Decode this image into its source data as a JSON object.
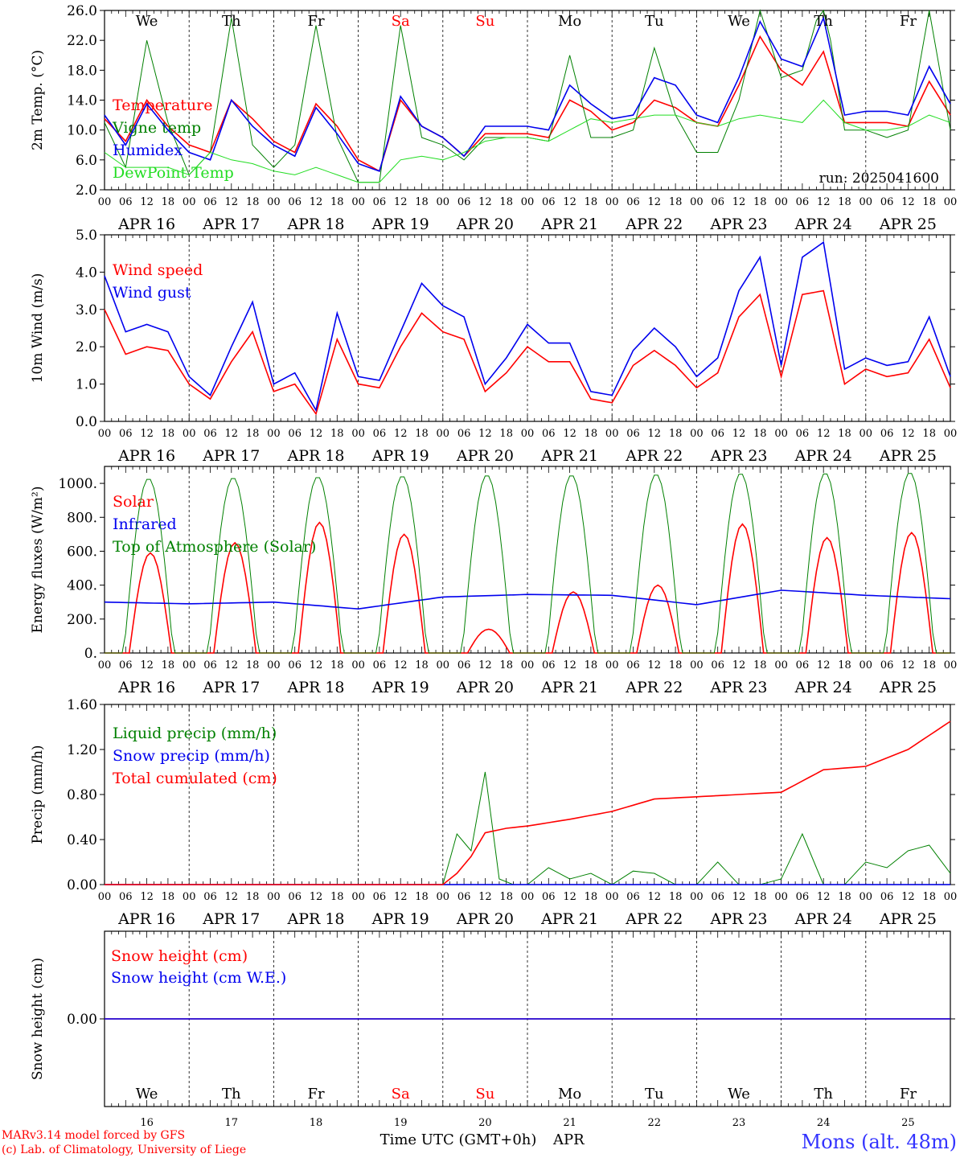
{
  "location": "Mons (alt. 48m)",
  "credits": [
    "MARv3.14 model forced by GFS",
    "(c) Lab. of Climatology, University of Liege"
  ],
  "xlabel": "Time UTC (GMT+0h)",
  "month": "APR",
  "run_label": "run: 2025041600",
  "days": [
    {
      "abbr": "We",
      "date": "16",
      "label": "APR 16",
      "weekend": false
    },
    {
      "abbr": "Th",
      "date": "17",
      "label": "APR 17",
      "weekend": false
    },
    {
      "abbr": "Fr",
      "date": "18",
      "label": "APR 18",
      "weekend": false
    },
    {
      "abbr": "Sa",
      "date": "19",
      "label": "APR 19",
      "weekend": true
    },
    {
      "abbr": "Su",
      "date": "20",
      "label": "APR 20",
      "weekend": true
    },
    {
      "abbr": "Mo",
      "date": "21",
      "label": "APR 21",
      "weekend": false
    },
    {
      "abbr": "Tu",
      "date": "22",
      "label": "APR 22",
      "weekend": false
    },
    {
      "abbr": "We",
      "date": "23",
      "label": "APR 23",
      "weekend": false
    },
    {
      "abbr": "Th",
      "date": "24",
      "label": "APR 24",
      "weekend": false
    },
    {
      "abbr": "Fr",
      "date": "25",
      "label": "APR 25",
      "weekend": false
    }
  ],
  "hour_ticks": [
    "00",
    "06",
    "12",
    "18"
  ],
  "end_tick": "00",
  "colors": {
    "red": "#ff0000",
    "blue": "#0000ee",
    "green": "#008000",
    "lightgreen": "#22dd22",
    "weekend": "#ff0000",
    "credit": "#ff0000",
    "location": "#3333ff"
  },
  "chart_data": [
    {
      "type": "line",
      "ylabel": "2m Temp. (°C)",
      "ylim": [
        2,
        26
      ],
      "yticks": [
        "2.0",
        "6.0",
        "10.0",
        "14.0",
        "18.0",
        "22.0",
        "26.0"
      ],
      "x_unit": "hours since APR 16 00 UTC",
      "series": [
        {
          "name": "Temperature",
          "color": "red",
          "x": [
            0,
            6,
            12,
            18,
            24,
            30,
            36,
            42,
            48,
            54,
            60,
            66,
            72,
            78,
            84,
            90,
            96,
            102,
            108,
            114,
            120,
            126,
            132,
            138,
            144,
            150,
            156,
            162,
            168,
            174,
            180,
            186,
            192,
            198,
            204,
            210,
            216,
            222,
            228,
            234,
            240
          ],
          "y": [
            11.5,
            8.5,
            14,
            10.5,
            8,
            7,
            14,
            11.5,
            8.5,
            7,
            13.5,
            10.5,
            6,
            4.5,
            14,
            10.5,
            9,
            6.5,
            9.5,
            9.5,
            9.5,
            9,
            14,
            12.5,
            10,
            11,
            14,
            13,
            11,
            10.5,
            16,
            22.5,
            18,
            16,
            20.5,
            11,
            11,
            11,
            10.5,
            16.5,
            12
          ]
        },
        {
          "name": "Vigne temp",
          "color": "green",
          "x": [
            0,
            6,
            12,
            18,
            24,
            30,
            36,
            42,
            48,
            54,
            60,
            66,
            72,
            78,
            84,
            90,
            96,
            102,
            108,
            114,
            120,
            126,
            132,
            138,
            144,
            150,
            156,
            162,
            168,
            174,
            180,
            186,
            192,
            198,
            204,
            210,
            216,
            222,
            228,
            234,
            240
          ],
          "y": [
            11,
            5,
            22,
            11,
            4,
            7,
            25,
            8,
            5,
            8,
            24,
            9,
            3,
            3,
            24,
            9,
            8,
            6,
            9,
            9,
            9,
            8.5,
            20,
            9,
            9,
            10,
            21,
            12,
            7,
            7,
            14,
            26,
            17,
            18,
            28,
            10,
            10,
            9,
            10,
            26,
            10
          ]
        },
        {
          "name": "Humidex",
          "color": "blue",
          "x": [
            0,
            6,
            12,
            18,
            24,
            30,
            36,
            42,
            48,
            54,
            60,
            66,
            72,
            78,
            84,
            90,
            96,
            102,
            108,
            114,
            120,
            126,
            132,
            138,
            144,
            150,
            156,
            162,
            168,
            174,
            180,
            186,
            192,
            198,
            204,
            210,
            216,
            222,
            228,
            234,
            240
          ],
          "y": [
            12,
            8,
            13.5,
            10,
            7,
            6,
            14,
            10.5,
            8,
            6.5,
            13,
            9.5,
            5.5,
            4.5,
            14.5,
            10.5,
            9,
            6.5,
            10.5,
            10.5,
            10.5,
            10,
            16,
            13.5,
            11.5,
            12,
            17,
            16,
            12,
            11,
            17,
            24.5,
            19.5,
            18.5,
            25,
            12,
            12.5,
            12.5,
            12,
            18.5,
            13.5
          ]
        },
        {
          "name": "DewPoint Temp",
          "color": "lightgreen",
          "x": [
            0,
            6,
            12,
            18,
            24,
            30,
            36,
            42,
            48,
            54,
            60,
            66,
            72,
            78,
            84,
            90,
            96,
            102,
            108,
            114,
            120,
            126,
            132,
            138,
            144,
            150,
            156,
            162,
            168,
            174,
            180,
            186,
            192,
            198,
            204,
            210,
            216,
            222,
            228,
            234,
            240
          ],
          "y": [
            7,
            5,
            5,
            5,
            4,
            7,
            6,
            5.5,
            4.5,
            4,
            5,
            4,
            3,
            3,
            6,
            6.5,
            6,
            7,
            8.5,
            9,
            9,
            8.5,
            10,
            11.5,
            11,
            11.5,
            12,
            12,
            11,
            10.5,
            11.5,
            12,
            11.5,
            11,
            14,
            11,
            10,
            10,
            10.5,
            12,
            11
          ]
        }
      ]
    },
    {
      "type": "line",
      "ylabel": "10m Wind (m/s)",
      "ylim": [
        0,
        5
      ],
      "yticks": [
        "0.0",
        "1.0",
        "2.0",
        "3.0",
        "4.0",
        "5.0"
      ],
      "series": [
        {
          "name": "Wind speed",
          "color": "red",
          "x": [
            0,
            6,
            12,
            18,
            24,
            30,
            36,
            42,
            48,
            54,
            60,
            66,
            72,
            78,
            84,
            90,
            96,
            102,
            108,
            114,
            120,
            126,
            132,
            138,
            144,
            150,
            156,
            162,
            168,
            174,
            180,
            186,
            192,
            198,
            204,
            210,
            216,
            222,
            228,
            234,
            240
          ],
          "y": [
            3,
            1.8,
            2,
            1.9,
            1,
            0.6,
            1.6,
            2.4,
            0.8,
            1,
            0.2,
            2.2,
            1,
            0.9,
            2,
            2.9,
            2.4,
            2.2,
            0.8,
            1.3,
            2,
            1.6,
            1.6,
            0.6,
            0.5,
            1.5,
            1.9,
            1.5,
            0.9,
            1.3,
            2.8,
            3.4,
            1.2,
            3.4,
            3.5,
            1,
            1.4,
            1.2,
            1.3,
            2.2,
            0.9
          ]
        },
        {
          "name": "Wind gust",
          "color": "blue",
          "x": [
            0,
            6,
            12,
            18,
            24,
            30,
            36,
            42,
            48,
            54,
            60,
            66,
            72,
            78,
            84,
            90,
            96,
            102,
            108,
            114,
            120,
            126,
            132,
            138,
            144,
            150,
            156,
            162,
            168,
            174,
            180,
            186,
            192,
            198,
            204,
            210,
            216,
            222,
            228,
            234,
            240
          ],
          "y": [
            3.9,
            2.4,
            2.6,
            2.4,
            1.2,
            0.7,
            2,
            3.2,
            1,
            1.3,
            0.3,
            2.9,
            1.2,
            1.1,
            2.4,
            3.7,
            3.1,
            2.8,
            1,
            1.7,
            2.6,
            2.1,
            2.1,
            0.8,
            0.7,
            1.9,
            2.5,
            2,
            1.2,
            1.7,
            3.5,
            4.4,
            1.5,
            4.4,
            4.8,
            1.4,
            1.7,
            1.5,
            1.6,
            2.8,
            1.2
          ]
        }
      ]
    },
    {
      "type": "line",
      "ylabel": "Energy fluxes (W/m²)",
      "ylim": [
        0,
        1100
      ],
      "yticks": [
        "0.",
        "200.",
        "400.",
        "600.",
        "800.",
        "1000."
      ],
      "series": [
        {
          "name": "Solar",
          "color": "red",
          "daily_peaks": [
            590,
            650,
            770,
            700,
            140,
            360,
            400,
            760,
            680,
            710
          ],
          "peak_hour": 13
        },
        {
          "name": "Infrared",
          "color": "blue",
          "x": [
            0,
            24,
            48,
            72,
            96,
            120,
            144,
            168,
            192,
            216,
            240
          ],
          "y": [
            300,
            290,
            300,
            260,
            330,
            345,
            340,
            285,
            370,
            340,
            320
          ]
        },
        {
          "name": "Top of Atmosphere (Solar)",
          "color": "green",
          "daily_peaks": [
            1030,
            1035,
            1040,
            1045,
            1050,
            1050,
            1055,
            1060,
            1062,
            1065
          ],
          "peak_hour": 12.5
        }
      ]
    },
    {
      "type": "line",
      "ylabel": "Precip (mm/h)",
      "ylim": [
        0,
        1.6
      ],
      "yticks": [
        "0.00",
        "0.40",
        "0.80",
        "1.20",
        "1.60"
      ],
      "series": [
        {
          "name": "Liquid precip (mm/h)",
          "color": "green",
          "x": [
            0,
            60,
            96,
            100,
            104,
            108,
            112,
            116,
            120,
            126,
            132,
            138,
            144,
            150,
            156,
            162,
            168,
            174,
            180,
            186,
            192,
            198,
            204,
            210,
            216,
            222,
            228,
            234,
            240
          ],
          "y": [
            0,
            0,
            0,
            0.45,
            0.3,
            1.0,
            0.05,
            0,
            0,
            0.15,
            0.05,
            0.1,
            0,
            0.12,
            0.1,
            0,
            0,
            0.2,
            0,
            0,
            0.05,
            0.45,
            0,
            0,
            0.2,
            0.15,
            0.3,
            0.35,
            0.1
          ]
        },
        {
          "name": "Snow precip (mm/h)",
          "color": "blue",
          "x": [
            0,
            240
          ],
          "y": [
            0,
            0
          ]
        },
        {
          "name": "Total cumulated (cm)",
          "color": "red",
          "x": [
            0,
            96,
            100,
            104,
            108,
            114,
            120,
            132,
            144,
            156,
            168,
            180,
            192,
            204,
            216,
            228,
            240
          ],
          "y": [
            0,
            0,
            0.1,
            0.25,
            0.46,
            0.5,
            0.52,
            0.58,
            0.65,
            0.76,
            0.78,
            0.8,
            0.82,
            1.02,
            1.05,
            1.2,
            1.45
          ]
        }
      ]
    },
    {
      "type": "line",
      "ylabel": "Snow height (cm)",
      "yticks": [
        "0.00"
      ],
      "series": [
        {
          "name": "Snow height (cm)",
          "color": "red",
          "x": [
            0,
            240
          ],
          "y": [
            0,
            0
          ]
        },
        {
          "name": "Snow height (cm W.E.)",
          "color": "blue",
          "x": [
            0,
            240
          ],
          "y": [
            0,
            0
          ]
        }
      ]
    }
  ]
}
